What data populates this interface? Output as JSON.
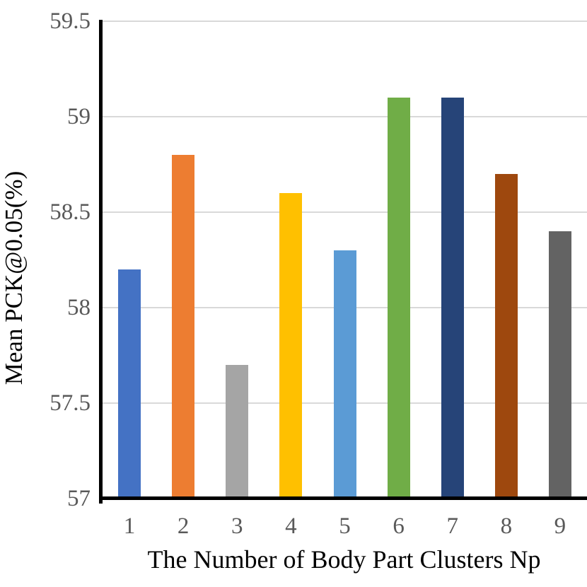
{
  "chart_data": {
    "type": "bar",
    "title": "",
    "xlabel": "The Number of Body Part Clusters Np",
    "ylabel": "Mean PCK@0.05(%)",
    "categories": [
      "1",
      "2",
      "3",
      "4",
      "5",
      "6",
      "7",
      "8",
      "9"
    ],
    "series": [
      {
        "name": "Mean PCK@0.05(%)",
        "values": [
          58.2,
          58.8,
          57.7,
          58.6,
          58.3,
          59.1,
          59.1,
          58.7,
          58.4
        ]
      }
    ],
    "bar_colors": [
      "#4472C4",
      "#ED7D31",
      "#A5A5A5",
      "#FFC000",
      "#5B9BD5",
      "#70AD47",
      "#264478",
      "#9E480E",
      "#636363"
    ],
    "ylim": [
      57,
      59.5
    ],
    "ytick_step": 0.5,
    "ytick_labels_top_to_bottom": [
      "59.5",
      "59",
      "58.5",
      "58",
      "57.5",
      "57"
    ],
    "grid": true,
    "legend": false
  },
  "style": {
    "background": "#FFFFFF",
    "gridline_color": "#D9D9D9",
    "axis_line_color": "#000000",
    "tick_label_color": "#595959",
    "axis_title_color": "#000000"
  }
}
